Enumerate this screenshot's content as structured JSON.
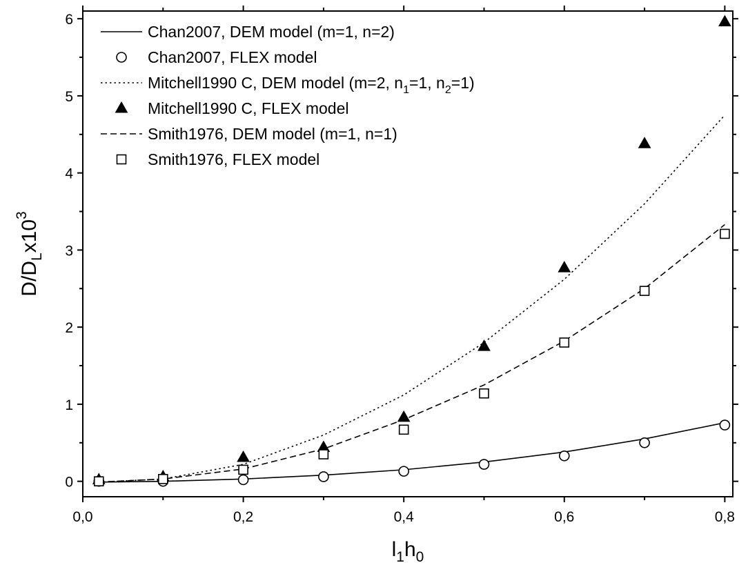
{
  "chart_data": {
    "type": "scatter",
    "xlabel": {
      "main1": "l",
      "sub1": "1",
      "main2": "h",
      "sub2": "0"
    },
    "ylabel": {
      "main1": "D/D",
      "sub1": "L",
      "main2": "x10",
      "sup": "3"
    },
    "xlim": [
      0.0,
      0.81
    ],
    "ylim": [
      -0.2,
      6.1
    ],
    "xticks": [
      {
        "value": 0.0,
        "label": "0,0"
      },
      {
        "value": 0.2,
        "label": "0,2"
      },
      {
        "value": 0.4,
        "label": "0,4"
      },
      {
        "value": 0.6,
        "label": "0,6"
      },
      {
        "value": 0.8,
        "label": "0,8"
      }
    ],
    "yticks": [
      {
        "value": 0,
        "label": "0"
      },
      {
        "value": 1,
        "label": "1"
      },
      {
        "value": 2,
        "label": "2"
      },
      {
        "value": 3,
        "label": "3"
      },
      {
        "value": 4,
        "label": "4"
      },
      {
        "value": 5,
        "label": "5"
      },
      {
        "value": 6,
        "label": "6"
      }
    ],
    "grid": false,
    "legend_position": "top-left",
    "series": [
      {
        "name": "Chan2007, DEM model (m=1, n=2)",
        "kind": "line",
        "dash": "solid",
        "x": [
          0.02,
          0.1,
          0.2,
          0.3,
          0.4,
          0.5,
          0.6,
          0.7,
          0.8
        ],
        "y": [
          -0.01,
          0.0,
          0.03,
          0.08,
          0.15,
          0.25,
          0.38,
          0.55,
          0.76
        ]
      },
      {
        "name": "Chan2007, FLEX model",
        "kind": "marker",
        "marker": "circle-open",
        "x": [
          0.02,
          0.1,
          0.2,
          0.3,
          0.4,
          0.5,
          0.6,
          0.7,
          0.8
        ],
        "y": [
          0.0,
          0.0,
          0.02,
          0.06,
          0.13,
          0.22,
          0.33,
          0.5,
          0.73
        ]
      },
      {
        "name": "Mitchell1990 C, DEM model (m=2, n1=1, n2=1)",
        "name_parts": {
          "text1": "Mitchell1990 C, DEM model (m=2, n",
          "sub1": "1",
          "text2": "=1, n",
          "sub2": "2",
          "text3": "=1)"
        },
        "kind": "line",
        "dash": "dotted",
        "x": [
          0.02,
          0.1,
          0.2,
          0.3,
          0.4,
          0.5,
          0.6,
          0.7,
          0.8
        ],
        "y": [
          -0.01,
          0.03,
          0.22,
          0.6,
          1.12,
          1.8,
          2.62,
          3.6,
          4.75
        ]
      },
      {
        "name": "Mitchell1990 C, FLEX model",
        "kind": "marker",
        "marker": "triangle-filled",
        "x": [
          0.02,
          0.1,
          0.2,
          0.3,
          0.4,
          0.5,
          0.6,
          0.7,
          0.8
        ],
        "y": [
          0.02,
          0.06,
          0.31,
          0.44,
          0.83,
          1.75,
          2.77,
          4.38,
          5.96
        ]
      },
      {
        "name": "Smith1976, DEM model (m=1, n=1)",
        "kind": "line",
        "dash": "dashed",
        "x": [
          0.02,
          0.1,
          0.2,
          0.3,
          0.4,
          0.5,
          0.6,
          0.7,
          0.8
        ],
        "y": [
          -0.01,
          0.03,
          0.16,
          0.42,
          0.8,
          1.25,
          1.82,
          2.5,
          3.33
        ]
      },
      {
        "name": "Smith1976, FLEX model",
        "kind": "marker",
        "marker": "square-open",
        "x": [
          0.02,
          0.1,
          0.2,
          0.3,
          0.4,
          0.5,
          0.6,
          0.7,
          0.8
        ],
        "y": [
          0.0,
          0.03,
          0.15,
          0.35,
          0.67,
          1.14,
          1.8,
          2.47,
          3.21
        ]
      }
    ]
  }
}
